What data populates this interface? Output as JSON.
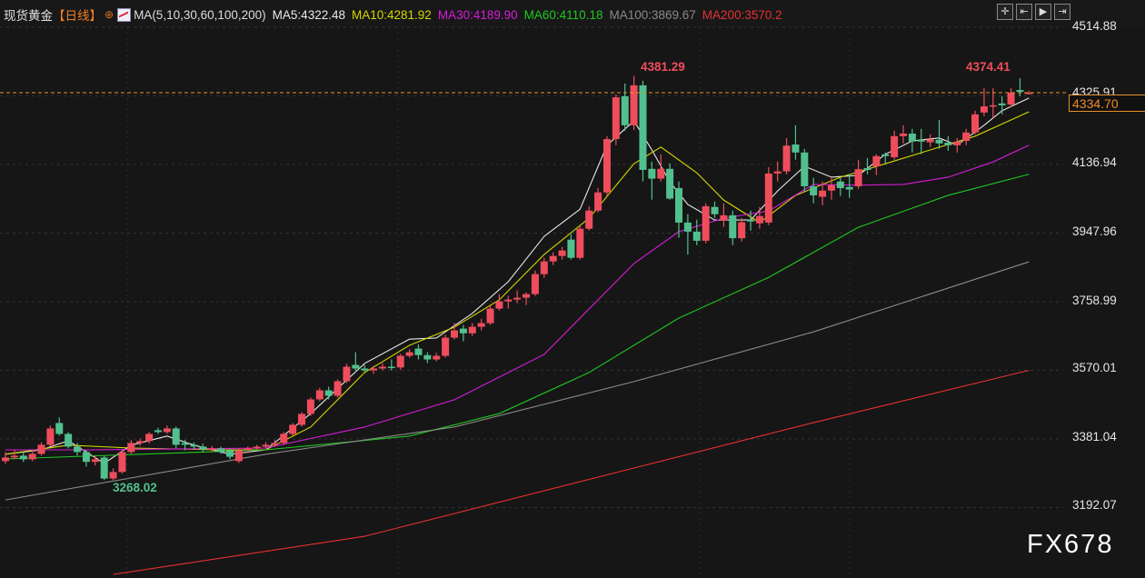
{
  "header": {
    "symbol": "现货黄金",
    "period": "【日线】",
    "target_icon": "crosshair-circle-icon",
    "ma_params": "MA(5,10,30,60,100,200)",
    "ma_values": [
      {
        "label": "MA5:4322.48",
        "color": "#e8e8e8"
      },
      {
        "label": "MA10:4281.92",
        "color": "#d6d600"
      },
      {
        "label": "MA30:4189.90",
        "color": "#d81cd8"
      },
      {
        "label": "MA60:4110.18",
        "color": "#20c820"
      },
      {
        "label": "MA100:3869.67",
        "color": "#8a8a8a"
      },
      {
        "label": "MA200:3570.2",
        "color": "#e83030"
      }
    ],
    "tools": [
      {
        "name": "crosshair-icon",
        "glyph": "✛"
      },
      {
        "name": "zoom-range-icon",
        "glyph": "⇤"
      },
      {
        "name": "play-icon",
        "glyph": "▶"
      },
      {
        "name": "go-latest-icon",
        "glyph": "⇥"
      }
    ]
  },
  "axis": {
    "ticks": [
      "4514.88",
      "4325.91",
      "4136.94",
      "3947.96",
      "3758.99",
      "3570.01",
      "3381.04",
      "3192.07"
    ],
    "current_price": "4334.70"
  },
  "annotations": {
    "high1": "4381.29",
    "high2": "4374.41",
    "low1": "3268.02"
  },
  "watermark": "FX678",
  "colors": {
    "up": "#ef4d5c",
    "down": "#52c08e",
    "last_line": "#e8912a"
  },
  "chart_data": {
    "type": "candlestick",
    "ylim": [
      3160,
      4540
    ],
    "yticks": [
      4514.88,
      4325.91,
      4136.94,
      3947.96,
      3758.99,
      3570.01,
      3381.04,
      3192.07
    ],
    "last_price": 4334.7,
    "grid": true,
    "candles_ohlc": [
      [
        3320,
        3345,
        3312,
        3330
      ],
      [
        3330,
        3350,
        3325,
        3335
      ],
      [
        3335,
        3345,
        3318,
        3325
      ],
      [
        3325,
        3352,
        3320,
        3340
      ],
      [
        3340,
        3372,
        3335,
        3365
      ],
      [
        3365,
        3418,
        3360,
        3410
      ],
      [
        3425,
        3440,
        3390,
        3395
      ],
      [
        3395,
        3400,
        3355,
        3360
      ],
      [
        3360,
        3370,
        3335,
        3345
      ],
      [
        3345,
        3350,
        3305,
        3318
      ],
      [
        3318,
        3335,
        3308,
        3325
      ],
      [
        3330,
        3335,
        3268.02,
        3272
      ],
      [
        3272,
        3300,
        3268,
        3290
      ],
      [
        3290,
        3350,
        3285,
        3345
      ],
      [
        3345,
        3378,
        3340,
        3370
      ],
      [
        3370,
        3382,
        3362,
        3375
      ],
      [
        3375,
        3400,
        3368,
        3395
      ],
      [
        3405,
        3412,
        3395,
        3400
      ],
      [
        3400,
        3418,
        3395,
        3410
      ],
      [
        3410,
        3415,
        3355,
        3365
      ],
      [
        3370,
        3378,
        3350,
        3365
      ],
      [
        3365,
        3372,
        3352,
        3360
      ],
      [
        3360,
        3368,
        3345,
        3352
      ],
      [
        3352,
        3362,
        3345,
        3355
      ],
      [
        3355,
        3360,
        3340,
        3345
      ],
      [
        3350,
        3355,
        3325,
        3332
      ],
      [
        3320,
        3355,
        3315,
        3350
      ],
      [
        3350,
        3360,
        3342,
        3355
      ],
      [
        3355,
        3365,
        3350,
        3360
      ],
      [
        3360,
        3372,
        3356,
        3365
      ],
      [
        3365,
        3378,
        3360,
        3370
      ],
      [
        3370,
        3400,
        3365,
        3395
      ],
      [
        3395,
        3425,
        3390,
        3420
      ],
      [
        3420,
        3455,
        3415,
        3450
      ],
      [
        3450,
        3495,
        3445,
        3490
      ],
      [
        3490,
        3522,
        3485,
        3515
      ],
      [
        3515,
        3525,
        3490,
        3500
      ],
      [
        3500,
        3545,
        3495,
        3540
      ],
      [
        3540,
        3588,
        3535,
        3580
      ],
      [
        3585,
        3620,
        3565,
        3575
      ],
      [
        3575,
        3585,
        3565,
        3570
      ],
      [
        3570,
        3582,
        3560,
        3575
      ],
      [
        3575,
        3590,
        3570,
        3580
      ],
      [
        3580,
        3600,
        3570,
        3578
      ],
      [
        3578,
        3615,
        3572,
        3610
      ],
      [
        3610,
        3628,
        3605,
        3620
      ],
      [
        3630,
        3642,
        3600,
        3612
      ],
      [
        3612,
        3620,
        3590,
        3600
      ],
      [
        3600,
        3618,
        3595,
        3610
      ],
      [
        3610,
        3668,
        3605,
        3660
      ],
      [
        3660,
        3700,
        3655,
        3680
      ],
      [
        3685,
        3695,
        3650,
        3672
      ],
      [
        3672,
        3700,
        3665,
        3690
      ],
      [
        3690,
        3712,
        3680,
        3700
      ],
      [
        3700,
        3748,
        3695,
        3740
      ],
      [
        3740,
        3780,
        3735,
        3760
      ],
      [
        3760,
        3775,
        3740,
        3765
      ],
      [
        3765,
        3790,
        3755,
        3770
      ],
      [
        3770,
        3785,
        3750,
        3780
      ],
      [
        3780,
        3845,
        3775,
        3835
      ],
      [
        3835,
        3880,
        3825,
        3870
      ],
      [
        3870,
        3895,
        3860,
        3885
      ],
      [
        3885,
        3910,
        3875,
        3900
      ],
      [
        3930,
        3945,
        3875,
        3880
      ],
      [
        3880,
        3968,
        3875,
        3960
      ],
      [
        3960,
        4022,
        3955,
        4010
      ],
      [
        4010,
        4072,
        4005,
        4060
      ],
      [
        4060,
        4215,
        4050,
        4207
      ],
      [
        4207,
        4330,
        4190,
        4322
      ],
      [
        4325,
        4360,
        4230,
        4245
      ],
      [
        4245,
        4381.29,
        4232,
        4355
      ],
      [
        4355,
        4368,
        4090,
        4122
      ],
      [
        4125,
        4145,
        4040,
        4098
      ],
      [
        4098,
        4165,
        4090,
        4125
      ],
      [
        4125,
        4140,
        4040,
        4043
      ],
      [
        4072,
        4090,
        3935,
        3977
      ],
      [
        3977,
        4000,
        3889,
        3952
      ],
      [
        3952,
        3985,
        3915,
        3927
      ],
      [
        3927,
        4030,
        3920,
        4022
      ],
      [
        4020,
        4035,
        3990,
        4000
      ],
      [
        3982,
        4030,
        3965,
        3997
      ],
      [
        3997,
        4010,
        3915,
        3934
      ],
      [
        3934,
        3990,
        3925,
        3978
      ],
      [
        3985,
        4010,
        3955,
        3980
      ],
      [
        3975,
        4020,
        3960,
        3995
      ],
      [
        3977,
        4130,
        3970,
        4112
      ],
      [
        4112,
        4145,
        4090,
        4118
      ],
      [
        4118,
        4210,
        4110,
        4189
      ],
      [
        4192,
        4245,
        4150,
        4170
      ],
      [
        4170,
        4180,
        4060,
        4077
      ],
      [
        4077,
        4100,
        4030,
        4052
      ],
      [
        4048,
        4090,
        4025,
        4065
      ],
      [
        4065,
        4102,
        4040,
        4080
      ],
      [
        4090,
        4100,
        4050,
        4072
      ],
      [
        4075,
        4110,
        4045,
        4068
      ],
      [
        4077,
        4150,
        4070,
        4124
      ],
      [
        4127,
        4155,
        4110,
        4122
      ],
      [
        4132,
        4165,
        4108,
        4160
      ],
      [
        4165,
        4170,
        4140,
        4160
      ],
      [
        4157,
        4230,
        4150,
        4215
      ],
      [
        4215,
        4245,
        4195,
        4222
      ],
      [
        4222,
        4235,
        4170,
        4200
      ],
      [
        4205,
        4235,
        4165,
        4200
      ],
      [
        4198,
        4220,
        4185,
        4206
      ],
      [
        4205,
        4260,
        4180,
        4195
      ],
      [
        4197,
        4215,
        4175,
        4190
      ],
      [
        4190,
        4210,
        4170,
        4200
      ],
      [
        4202,
        4235,
        4190,
        4225
      ],
      [
        4225,
        4285,
        4220,
        4275
      ],
      [
        4280,
        4347,
        4270,
        4297
      ],
      [
        4297,
        4347,
        4265,
        4300
      ],
      [
        4305,
        4325,
        4275,
        4300
      ],
      [
        4302,
        4347,
        4295,
        4335
      ],
      [
        4342,
        4374.41,
        4325,
        4337
      ],
      [
        4334,
        4340,
        4330,
        4334.7
      ]
    ],
    "moving_averages": [
      {
        "name": "MA5",
        "color": "#e8e8e8",
        "points": [
          [
            0,
            3339
          ],
          [
            4,
            3351
          ],
          [
            7,
            3376
          ],
          [
            11,
            3314
          ],
          [
            14,
            3364
          ],
          [
            18,
            3389
          ],
          [
            21,
            3364
          ],
          [
            25,
            3339
          ],
          [
            29,
            3351
          ],
          [
            34,
            3451
          ],
          [
            40,
            3589
          ],
          [
            45,
            3656
          ],
          [
            48,
            3659
          ],
          [
            52,
            3727
          ],
          [
            56,
            3814
          ],
          [
            60,
            3939
          ],
          [
            64,
            4014
          ],
          [
            67,
            4190
          ],
          [
            70,
            4257
          ],
          [
            72,
            4177
          ],
          [
            74,
            4089
          ],
          [
            76,
            4027
          ],
          [
            79,
            3984
          ],
          [
            83,
            3984
          ],
          [
            86,
            4064
          ],
          [
            89,
            4132
          ],
          [
            92,
            4102
          ],
          [
            95,
            4107
          ],
          [
            98,
            4165
          ],
          [
            101,
            4202
          ],
          [
            104,
            4210
          ],
          [
            106,
            4190
          ],
          [
            109,
            4245
          ],
          [
            111,
            4285
          ],
          [
            114,
            4320
          ]
        ]
      },
      {
        "name": "MA10",
        "color": "#d6d600",
        "points": [
          [
            0,
            3339
          ],
          [
            7,
            3364
          ],
          [
            14,
            3356
          ],
          [
            24,
            3351
          ],
          [
            29,
            3351
          ],
          [
            34,
            3414
          ],
          [
            40,
            3564
          ],
          [
            45,
            3639
          ],
          [
            50,
            3689
          ],
          [
            55,
            3764
          ],
          [
            60,
            3889
          ],
          [
            65,
            3989
          ],
          [
            70,
            4139
          ],
          [
            73,
            4185
          ],
          [
            77,
            4114
          ],
          [
            80,
            4039
          ],
          [
            84,
            3977
          ],
          [
            88,
            4052
          ],
          [
            93,
            4102
          ],
          [
            98,
            4139
          ],
          [
            103,
            4177
          ],
          [
            108,
            4215
          ],
          [
            114,
            4282
          ]
        ]
      },
      {
        "name": "MA30",
        "color": "#d81cd8",
        "points": [
          [
            0,
            3351
          ],
          [
            9,
            3351
          ],
          [
            29,
            3356
          ],
          [
            40,
            3414
          ],
          [
            50,
            3489
          ],
          [
            60,
            3614
          ],
          [
            70,
            3864
          ],
          [
            75,
            3952
          ],
          [
            80,
            3989
          ],
          [
            85,
            4009
          ],
          [
            90,
            4082
          ],
          [
            95,
            4080
          ],
          [
            100,
            4082
          ],
          [
            105,
            4102
          ],
          [
            110,
            4144
          ],
          [
            114,
            4190
          ]
        ]
      },
      {
        "name": "MA60",
        "color": "#20c820",
        "points": [
          [
            0,
            3326
          ],
          [
            29,
            3351
          ],
          [
            45,
            3389
          ],
          [
            55,
            3451
          ],
          [
            65,
            3564
          ],
          [
            75,
            3714
          ],
          [
            85,
            3826
          ],
          [
            95,
            3964
          ],
          [
            105,
            4052
          ],
          [
            114,
            4110
          ]
        ]
      },
      {
        "name": "MA100",
        "color": "#8a8a8a",
        "points": [
          [
            0,
            3213
          ],
          [
            29,
            3339
          ],
          [
            50,
            3414
          ],
          [
            70,
            3539
          ],
          [
            90,
            3676
          ],
          [
            114,
            3869
          ]
        ]
      },
      {
        "name": "MA200",
        "color": "#e83030",
        "points": [
          [
            12,
            3008
          ],
          [
            40,
            3113
          ],
          [
            70,
            3301
          ],
          [
            90,
            3426
          ],
          [
            114,
            3570
          ]
        ]
      }
    ]
  }
}
